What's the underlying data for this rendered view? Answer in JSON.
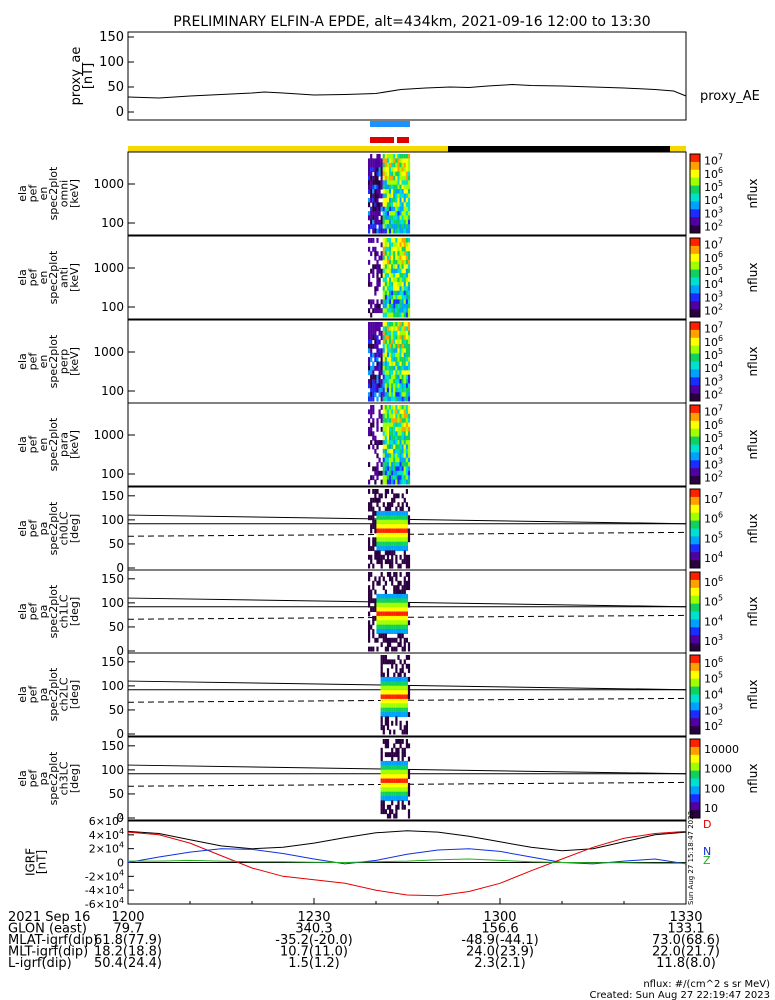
{
  "title": "PRELIMINARY ELFIN-A EPDE, alt=434km, 2021-09-16 12:00 to 13:30",
  "colors": {
    "sci_zone": "#f5d800",
    "shadow": "#000000",
    "fast_blue": "#1f90ff",
    "fast_red": "#e00000",
    "bx": "#e00000",
    "by": "#1030e0",
    "bz": "#20b020",
    "btot": "#000000"
  },
  "chart_data": [
    {
      "type": "line",
      "name": "proxy_ae",
      "ylabel": "proxy_ae\n[nT]",
      "legend": "proxy_AE",
      "ylim": [
        0,
        160
      ],
      "yticks": [
        "0",
        "50",
        "100",
        "150"
      ],
      "x_minutes": [
        0,
        5,
        10,
        15,
        20,
        22,
        25,
        30,
        35,
        40,
        44,
        48,
        52,
        55,
        58,
        62,
        65,
        70,
        75,
        80,
        85,
        88,
        90
      ],
      "values": [
        30,
        28,
        32,
        35,
        38,
        40,
        38,
        34,
        35,
        37,
        45,
        48,
        50,
        49,
        52,
        55,
        53,
        52,
        50,
        48,
        45,
        42,
        32
      ]
    },
    {
      "type": "heatmap",
      "name": "spectrograms",
      "panels": [
        {
          "ylabel": "ela\npef\nen\nspec2plot\nomni\n[keV]",
          "yticks": [
            "100",
            "1000"
          ],
          "zlabel": "nflux",
          "zticks": [
            "10^2",
            "10^3",
            "10^4",
            "10^5",
            "10^6",
            "10^7"
          ]
        },
        {
          "ylabel": "ela\npef\nen\nspec2plot\nanti\n[keV]",
          "yticks": [
            "100",
            "1000"
          ],
          "zlabel": "nflux",
          "zticks": [
            "10^2",
            "10^3",
            "10^4",
            "10^5",
            "10^6",
            "10^7"
          ]
        },
        {
          "ylabel": "ela\npef\nen\nspec2plot\nperp\n[keV]",
          "yticks": [
            "100",
            "1000"
          ],
          "zlabel": "nflux",
          "zticks": [
            "10^2",
            "10^3",
            "10^4",
            "10^5",
            "10^6",
            "10^7"
          ]
        },
        {
          "ylabel": "ela\npef\nen\nspec2plot\npara\n[keV]",
          "yticks": [
            "100",
            "1000"
          ],
          "zlabel": "nflux",
          "zticks": [
            "10^2",
            "10^3",
            "10^4",
            "10^5",
            "10^6",
            "10^7"
          ]
        },
        {
          "ylabel": "ela\npef\npa\nspec2plot\nch0LC\n[deg]",
          "yticks": [
            "0",
            "50",
            "100",
            "150"
          ],
          "zlabel": "nflux",
          "zticks": [
            "10^4",
            "10^5",
            "10^6",
            "10^7"
          ]
        },
        {
          "ylabel": "ela\npef\npa\nspec2plot\nch1LC\n[deg]",
          "yticks": [
            "0",
            "50",
            "100",
            "150"
          ],
          "zlabel": "nflux",
          "zticks": [
            "10^3",
            "10^4",
            "10^5",
            "10^6"
          ]
        },
        {
          "ylabel": "ela\npef\npa\nspec2plot\nch2LC\n[deg]",
          "yticks": [
            "0",
            "50",
            "100",
            "150"
          ],
          "zlabel": "nflux",
          "zticks": [
            "10^2",
            "10^3",
            "10^4",
            "10^5",
            "10^6"
          ]
        },
        {
          "ylabel": "ela\npef\npa\nspec2plot\nch3LC\n[deg]",
          "yticks": [
            "0",
            "50",
            "100",
            "150"
          ],
          "zlabel": "nflux",
          "zticks": [
            "10",
            "100",
            "1000",
            "10000"
          ]
        }
      ]
    },
    {
      "type": "line",
      "name": "IGRF",
      "ylabel": "IGRF\n[nT]",
      "ylim": [
        -60000,
        60000
      ],
      "yticks": [
        "-6x10^4",
        "-4x10^4",
        "-2x10^4",
        "0",
        "2x10^4",
        "4x10^4",
        "6x10^4"
      ],
      "legend_letters": [
        "Z",
        "N",
        "D"
      ],
      "x_minutes": [
        0,
        5,
        10,
        15,
        20,
        25,
        30,
        35,
        40,
        45,
        50,
        55,
        60,
        65,
        70,
        75,
        80,
        85,
        90
      ],
      "series": [
        {
          "color": "#000000",
          "values": [
            45000,
            42000,
            33000,
            24000,
            20000,
            22000,
            28000,
            36000,
            43000,
            46000,
            44000,
            38000,
            30000,
            22000,
            17000,
            20000,
            30000,
            40000,
            44000
          ]
        },
        {
          "color": "#e00000",
          "values": [
            44000,
            40000,
            28000,
            10000,
            -8000,
            -20000,
            -25000,
            -30000,
            -40000,
            -47000,
            -48000,
            -42000,
            -30000,
            -12000,
            5000,
            22000,
            35000,
            42000,
            45000
          ]
        },
        {
          "color": "#1030e0",
          "values": [
            0,
            8000,
            15000,
            20000,
            19000,
            13000,
            5000,
            -2000,
            3000,
            12000,
            18000,
            20000,
            16000,
            8000,
            0,
            -2000,
            2000,
            5000,
            -2000
          ]
        },
        {
          "color": "#20b020",
          "values": [
            2000,
            2000,
            3000,
            2000,
            1000,
            1000,
            500,
            0,
            1000,
            2000,
            4000,
            5000,
            3000,
            1000,
            0,
            -500,
            -500,
            -1000,
            -1000
          ]
        }
      ]
    }
  ],
  "xaxis": {
    "rows": [
      {
        "label": "2021 Sep 16",
        "vals": [
          "1200",
          "1230",
          "1300",
          "1330"
        ]
      },
      {
        "label": "GLON (east)",
        "vals": [
          "79.7",
          "340.3",
          "156.6",
          "133.1"
        ]
      },
      {
        "label": "MLAT-igrf(dip)",
        "vals": [
          "61.8(77.9)",
          "-35.2(-20.0)",
          "-48.9(-44.1)",
          "73.0(68.6)"
        ]
      },
      {
        "label": "MLT-igrf(dip)",
        "vals": [
          "18.2(18.8)",
          "10.7(11.0)",
          "24.0(23.9)",
          "22.0(21.7)"
        ]
      },
      {
        "label": "L-igrf(dip)",
        "vals": [
          "50.4(24.4)",
          "1.5(1.2)",
          "2.3(2.1)",
          "11.8(8.0)"
        ]
      }
    ]
  },
  "footer": {
    "units": "nflux: #/(cm^2 s sr MeV)",
    "created": "Created: Sun Aug 27 22:19:47 2023",
    "side_stamp": "Sun Aug 27 15:18:47 2023"
  }
}
